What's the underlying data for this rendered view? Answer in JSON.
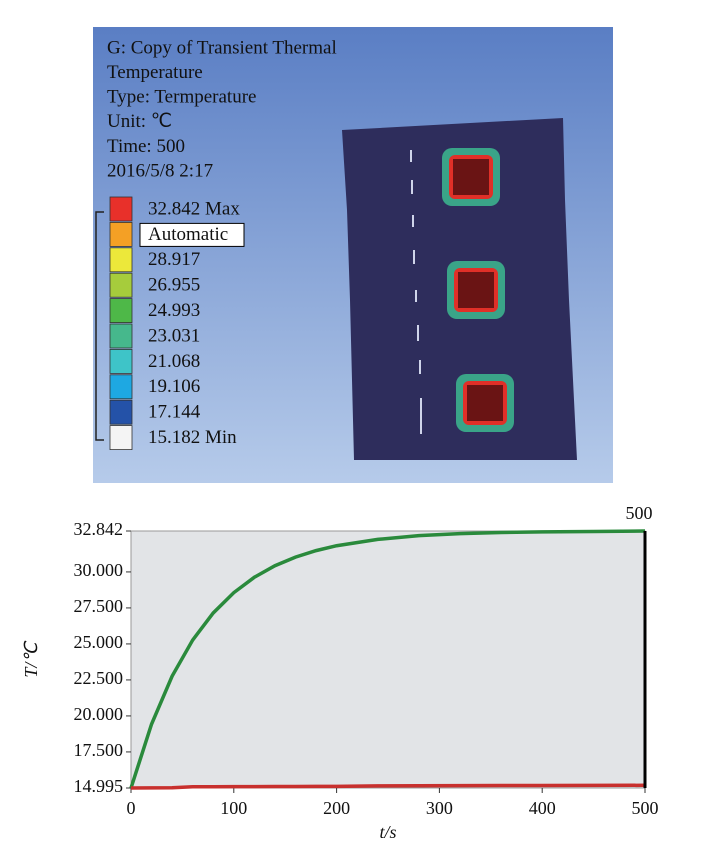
{
  "contour_panel": {
    "lines": [
      "G: Copy of Transient Thermal",
      "Temperature",
      "Type: Termperature",
      "Unit: ℃",
      "Time: 500",
      "2016/5/8  2:17"
    ],
    "legend": [
      {
        "label": "32.842 Max",
        "color": "#e8302a"
      },
      {
        "label": "Automatic",
        "color": "#f4a025"
      },
      {
        "label": "28.917",
        "color": "#ece83a"
      },
      {
        "label": "26.955",
        "color": "#a6cc3c"
      },
      {
        "label": "24.993",
        "color": "#4eb848"
      },
      {
        "label": "23.031",
        "color": "#46b88c"
      },
      {
        "label": "21.068",
        "color": "#3ec4c8"
      },
      {
        "label": "19.106",
        "color": "#1ea8e2"
      },
      {
        "label": "17.144",
        "color": "#2452a8"
      },
      {
        "label": "15.182 Min",
        "color": "#f4f4f4"
      }
    ]
  },
  "chart_data": {
    "type": "line",
    "x_label": "t/s",
    "y_label": "T/℃",
    "x": [
      0,
      20,
      40,
      60,
      80,
      100,
      120,
      140,
      160,
      180,
      200,
      240,
      280,
      320,
      360,
      400,
      450,
      500
    ],
    "series": [
      {
        "color": "#2a8a3c",
        "values": [
          14.995,
          19.43,
          22.76,
          25.27,
          27.15,
          28.56,
          29.63,
          30.43,
          31.03,
          31.48,
          31.82,
          32.26,
          32.52,
          32.66,
          32.74,
          32.78,
          32.81,
          32.842
        ]
      },
      {
        "color": "#c8302e",
        "values": [
          14.995,
          15.0,
          15.01,
          15.08,
          15.08,
          15.09,
          15.09,
          15.1,
          15.1,
          15.11,
          15.11,
          15.14,
          15.15,
          15.16,
          15.17,
          15.17,
          15.18,
          15.182
        ]
      }
    ],
    "xlim": [
      0,
      500
    ],
    "xticks": [
      0,
      100,
      200,
      300,
      400,
      500
    ],
    "ylim": [
      14.995,
      32.842
    ],
    "yticks": [
      14.995,
      {
        "value": 17.5,
        "label": "17.500"
      },
      {
        "value": 20,
        "label": "20.000"
      },
      {
        "value": 22.5,
        "label": "22.500"
      },
      {
        "value": 25,
        "label": "25.000"
      },
      {
        "value": 27.5,
        "label": "27.500"
      },
      {
        "value": 30,
        "label": "30.000"
      },
      32.842
    ],
    "cursor_x": 500
  }
}
